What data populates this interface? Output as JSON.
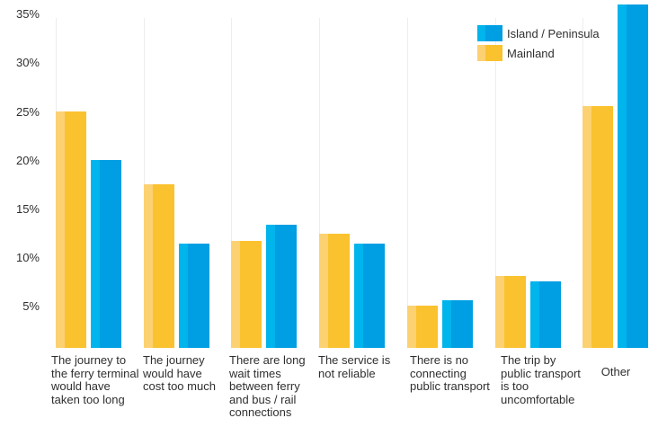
{
  "chart_data": {
    "type": "bar",
    "title": "",
    "xlabel": "",
    "ylabel": "",
    "ylim": [
      0,
      36.5
    ],
    "grid": "faint vertical lines at category boundaries",
    "legend_position": "top-right",
    "categories": [
      "The journey to the ferry terminal would have taken too long",
      "The journey would have cost too much",
      "There are long wait times between ferry and bus / rail connections",
      "The service is not reliable",
      "There is no connecting public transport",
      "The trip by public transport is too uncomfortable",
      "Other"
    ],
    "category_label_lines": [
      [
        "The journey to",
        "the ferry terminal",
        "would have",
        "taken too long"
      ],
      [
        "The journey",
        "would have",
        "cost too much"
      ],
      [
        "There are long",
        "wait times",
        "between ferry",
        "and bus / rail",
        "connections"
      ],
      [
        "The service is",
        "not reliable"
      ],
      [
        "There is no",
        "connecting",
        "public transport"
      ],
      [
        "The trip by",
        "public transport",
        "is too",
        "uncomfortable"
      ],
      [
        "Other"
      ]
    ],
    "series": [
      {
        "name": "Island / Peninsula",
        "values": [
          20.1,
          11.5,
          13.4,
          11.5,
          5.6,
          7.6,
          36.0
        ],
        "color_main": "#009EE2",
        "color_light": "#00B4EC"
      },
      {
        "name": "Mainland",
        "values": [
          25.0,
          17.6,
          11.7,
          12.5,
          5.1,
          8.1,
          25.6
        ],
        "color_main": "#FBC22F",
        "color_light": "#FCD172"
      }
    ],
    "bar_order_left_to_right": [
      "Mainland",
      "Island / Peninsula"
    ],
    "y_axis": {
      "unit": "%",
      "tick_labels": [
        "35%",
        "30%",
        "25%",
        "20%",
        "15%",
        "10%",
        "5%"
      ],
      "tick_values": [
        35,
        30,
        25,
        20,
        15,
        10,
        5
      ]
    }
  },
  "colors": {
    "background": "#FFFFFF",
    "gridline": "#EDEDED",
    "text": "#2F2F2F"
  }
}
